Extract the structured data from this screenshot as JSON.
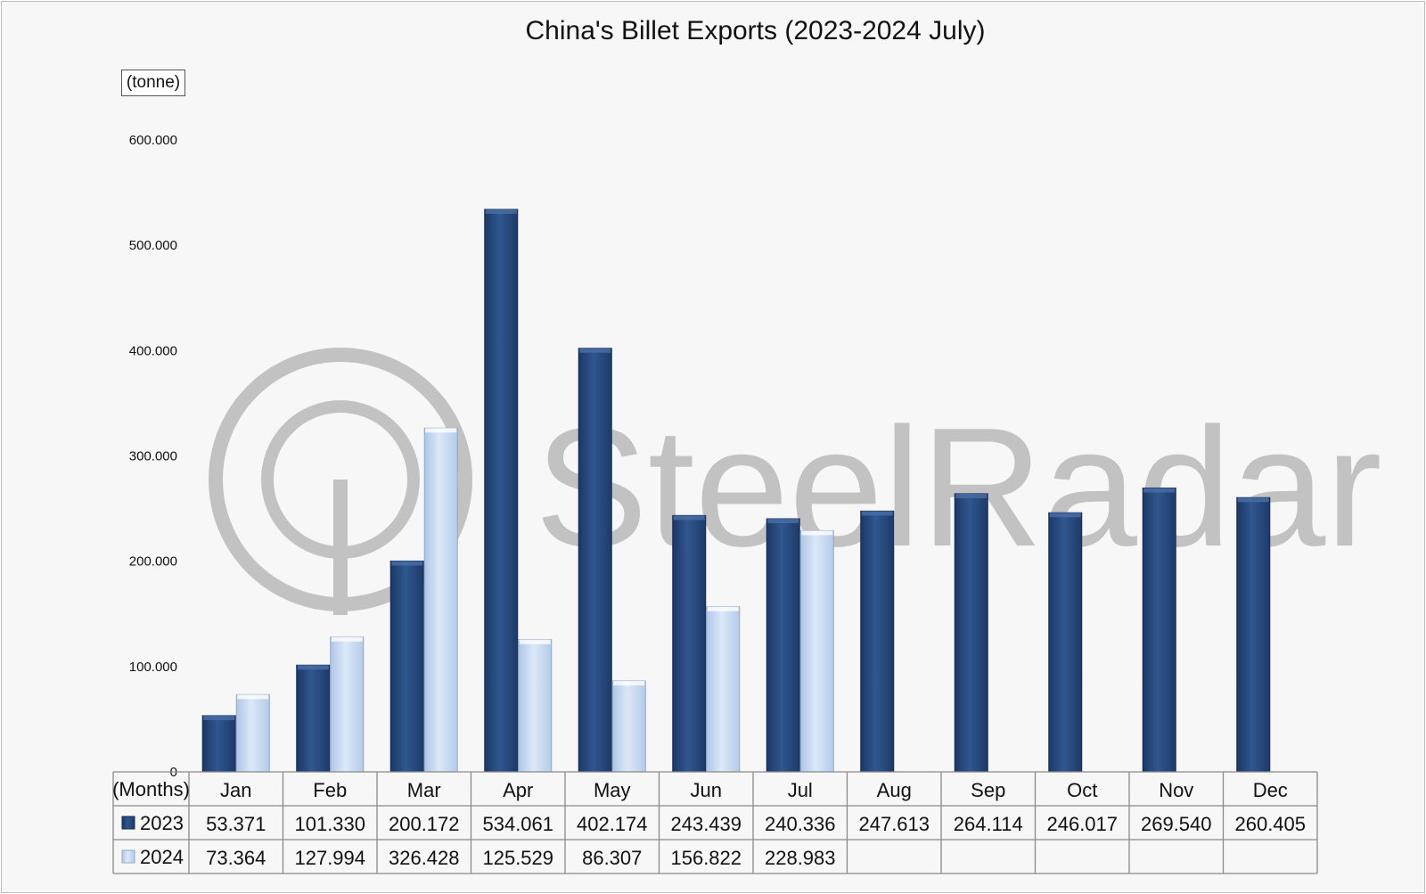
{
  "chart_data": {
    "type": "bar",
    "title": "China's Billet Exports (2023-2024 July)",
    "ylabel": "(tonne)",
    "xlabel": "(Months)",
    "ylim": [
      0,
      600000
    ],
    "ytick_values": [
      0,
      100000,
      200000,
      300000,
      400000,
      500000,
      600000
    ],
    "ytick_labels": [
      "0",
      "100.000",
      "200.000",
      "300.000",
      "400.000",
      "500.000",
      "600.000"
    ],
    "categories": [
      "Jan",
      "Feb",
      "Mar",
      "Apr",
      "May",
      "Jun",
      "Jul",
      "Aug",
      "Sep",
      "Oct",
      "Nov",
      "Dec"
    ],
    "series": [
      {
        "name": "2023",
        "color": "#2b4f86",
        "values": [
          53371,
          101330,
          200172,
          534061,
          402174,
          243439,
          240336,
          247613,
          264114,
          246017,
          269540,
          260405
        ],
        "labels": [
          "53.371",
          "101.330",
          "200.172",
          "534.061",
          "402.174",
          "243.439",
          "240.336",
          "247.613",
          "264.114",
          "246.017",
          "269.540",
          "260.405"
        ]
      },
      {
        "name": "2024",
        "color": "#c9dcf5",
        "values": [
          73364,
          127994,
          326428,
          125529,
          86307,
          156822,
          228983,
          null,
          null,
          null,
          null,
          null
        ],
        "labels": [
          "73.364",
          "127.994",
          "326.428",
          "125.529",
          "86.307",
          "156.822",
          "228.983",
          "",
          "",
          "",
          "",
          ""
        ]
      }
    ],
    "grid": false,
    "legend": "data-table"
  },
  "watermark": {
    "text": "SteelRadar",
    "color": "#b9b9b9"
  }
}
